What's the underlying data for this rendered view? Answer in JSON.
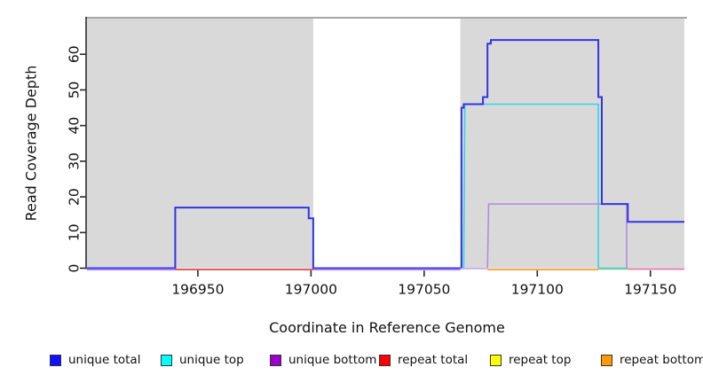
{
  "figure": {
    "xlabel": "Coordinate in Reference Genome",
    "ylabel": "Read Coverage Depth"
  },
  "chart_data": {
    "type": "line",
    "subtype": "step-coverage",
    "xlabel": "Coordinate in Reference Genome",
    "ylabel": "Read Coverage Depth",
    "xlim": [
      196901,
      197165
    ],
    "ylim": [
      0,
      70
    ],
    "xticks": [
      196950,
      197000,
      197050,
      197100,
      197150
    ],
    "yticks": [
      0,
      10,
      20,
      30,
      40,
      50,
      60
    ],
    "grid": false,
    "region_color": "#d9d9d9",
    "region_border_color": "#888888",
    "shaded_regions": [
      {
        "from": 196901,
        "to": 197001
      },
      {
        "from": 197066,
        "to": 197165
      }
    ],
    "series": [
      {
        "name": "unique top",
        "color": "#33d6e6",
        "width": 1.6,
        "points": [
          [
            197067.5,
            0
          ],
          [
            197068,
            46
          ],
          [
            197127,
            46
          ],
          [
            197127,
            0
          ],
          [
            197140,
            0
          ]
        ]
      },
      {
        "name": "unique bottom",
        "color": "#b48ce0",
        "width": 1.6,
        "points": [
          [
            197078,
            0
          ],
          [
            197078.5,
            18
          ],
          [
            197139.5,
            18
          ],
          [
            197139.5,
            0
          ]
        ]
      },
      {
        "name": "unique total",
        "color": "#3333e6",
        "width": 2,
        "points": [
          [
            196901,
            0
          ],
          [
            196940,
            0
          ],
          [
            196940,
            17
          ],
          [
            196999,
            17
          ],
          [
            196999,
            14
          ],
          [
            197001,
            14
          ],
          [
            197001,
            0
          ],
          [
            197066.5,
            0
          ],
          [
            197066.5,
            45
          ],
          [
            197067.5,
            45
          ],
          [
            197067.5,
            46
          ],
          [
            197076,
            46
          ],
          [
            197076,
            48
          ],
          [
            197078,
            48
          ],
          [
            197078,
            63
          ],
          [
            197079.5,
            63
          ],
          [
            197079.5,
            64
          ],
          [
            197127,
            64
          ],
          [
            197127,
            48
          ],
          [
            197128.5,
            48
          ],
          [
            197128.5,
            18
          ],
          [
            197140,
            18
          ],
          [
            197140,
            13
          ],
          [
            197165,
            13
          ]
        ]
      }
    ],
    "baseline_segments": [
      {
        "from": 196901,
        "to": 196940,
        "color": "#4a4af0",
        "dy": 0.5,
        "width": 2
      },
      {
        "from": 196901,
        "to": 196940,
        "color": "#c9a3ef",
        "dy": 2.0,
        "width": 1.4
      },
      {
        "from": 196940,
        "to": 197001,
        "color": "#e04545",
        "dy": 1.5,
        "width": 1.8
      },
      {
        "from": 197001,
        "to": 197066,
        "color": "#4a4af0",
        "dy": 0.5,
        "width": 2
      },
      {
        "from": 197001,
        "to": 197066,
        "color": "#c9a3ef",
        "dy": 2.0,
        "width": 1.4
      },
      {
        "from": 197066,
        "to": 197078,
        "color": "#c9a3ef",
        "dy": 0.5,
        "width": 1.6
      },
      {
        "from": 197078,
        "to": 197127,
        "color": "#ff9d26",
        "dy": 1.5,
        "width": 1.8
      },
      {
        "from": 197127,
        "to": 197140,
        "color": "#86c98a",
        "dy": 1.0,
        "width": 1.6
      },
      {
        "from": 197140,
        "to": 197165,
        "color": "#e5679c",
        "dy": 1.0,
        "width": 1.6
      }
    ],
    "legend": [
      {
        "label": "unique total",
        "color": "#1111ff"
      },
      {
        "label": "unique top",
        "color": "#00ffff"
      },
      {
        "label": "unique bottom",
        "color": "#9a00cc"
      },
      {
        "label": "repeat total",
        "color": "#ff0000"
      },
      {
        "label": "repeat top",
        "color": "#ffff00"
      },
      {
        "label": "repeat bottom",
        "color": "#ff9a00"
      }
    ]
  }
}
